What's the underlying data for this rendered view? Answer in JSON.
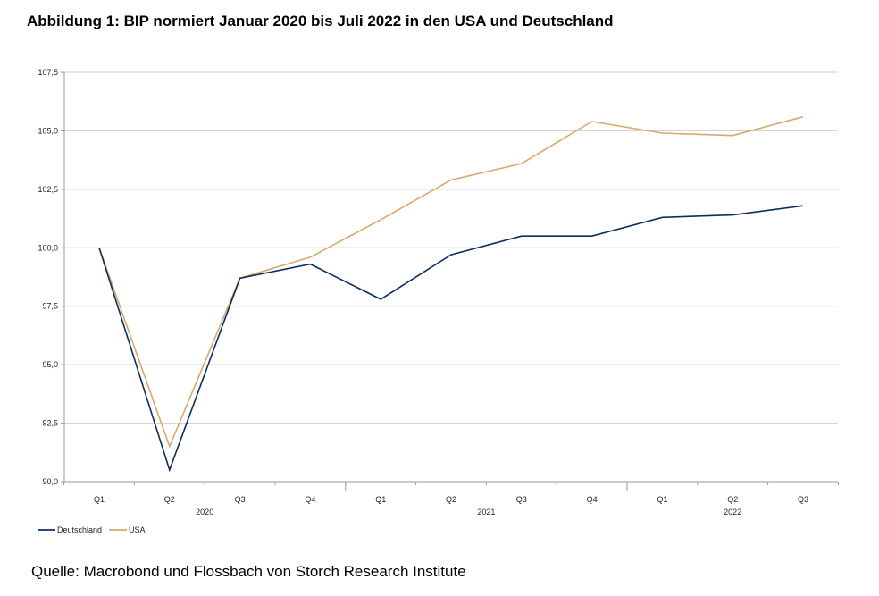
{
  "figure": {
    "title": "Abbildung 1: BIP normiert Januar 2020 bis Juli 2022 in den USA und Deutschland",
    "source": "Quelle: Macrobond und Flossbach von Storch Research Institute"
  },
  "chart_data": {
    "type": "line",
    "categories": [
      "Q1",
      "Q2",
      "Q3",
      "Q4",
      "Q1",
      "Q2",
      "Q3",
      "Q4",
      "Q1",
      "Q2",
      "Q3"
    ],
    "year_labels": [
      {
        "label": "2020",
        "center_index": 1.5
      },
      {
        "label": "2021",
        "center_index": 5.5
      },
      {
        "label": "2022",
        "center_index": 9
      }
    ],
    "year_boundaries": [
      3.5,
      7.5
    ],
    "series": [
      {
        "name": "Deutschland",
        "color": "#0d2d5e",
        "values": [
          100.0,
          90.5,
          98.7,
          99.3,
          97.8,
          99.7,
          100.5,
          100.5,
          101.3,
          101.4,
          101.8
        ]
      },
      {
        "name": "USA",
        "color": "#d9a86c",
        "values": [
          100.0,
          91.5,
          98.7,
          99.6,
          101.2,
          102.9,
          103.6,
          105.4,
          104.9,
          104.8,
          105.6
        ]
      }
    ],
    "yticks": [
      "90,0",
      "92,5",
      "95,0",
      "97,5",
      "100,0",
      "102,5",
      "105,0",
      "107,5"
    ],
    "ylim": [
      90,
      107.5
    ],
    "grid": true,
    "legend_position": "bottom-left"
  }
}
